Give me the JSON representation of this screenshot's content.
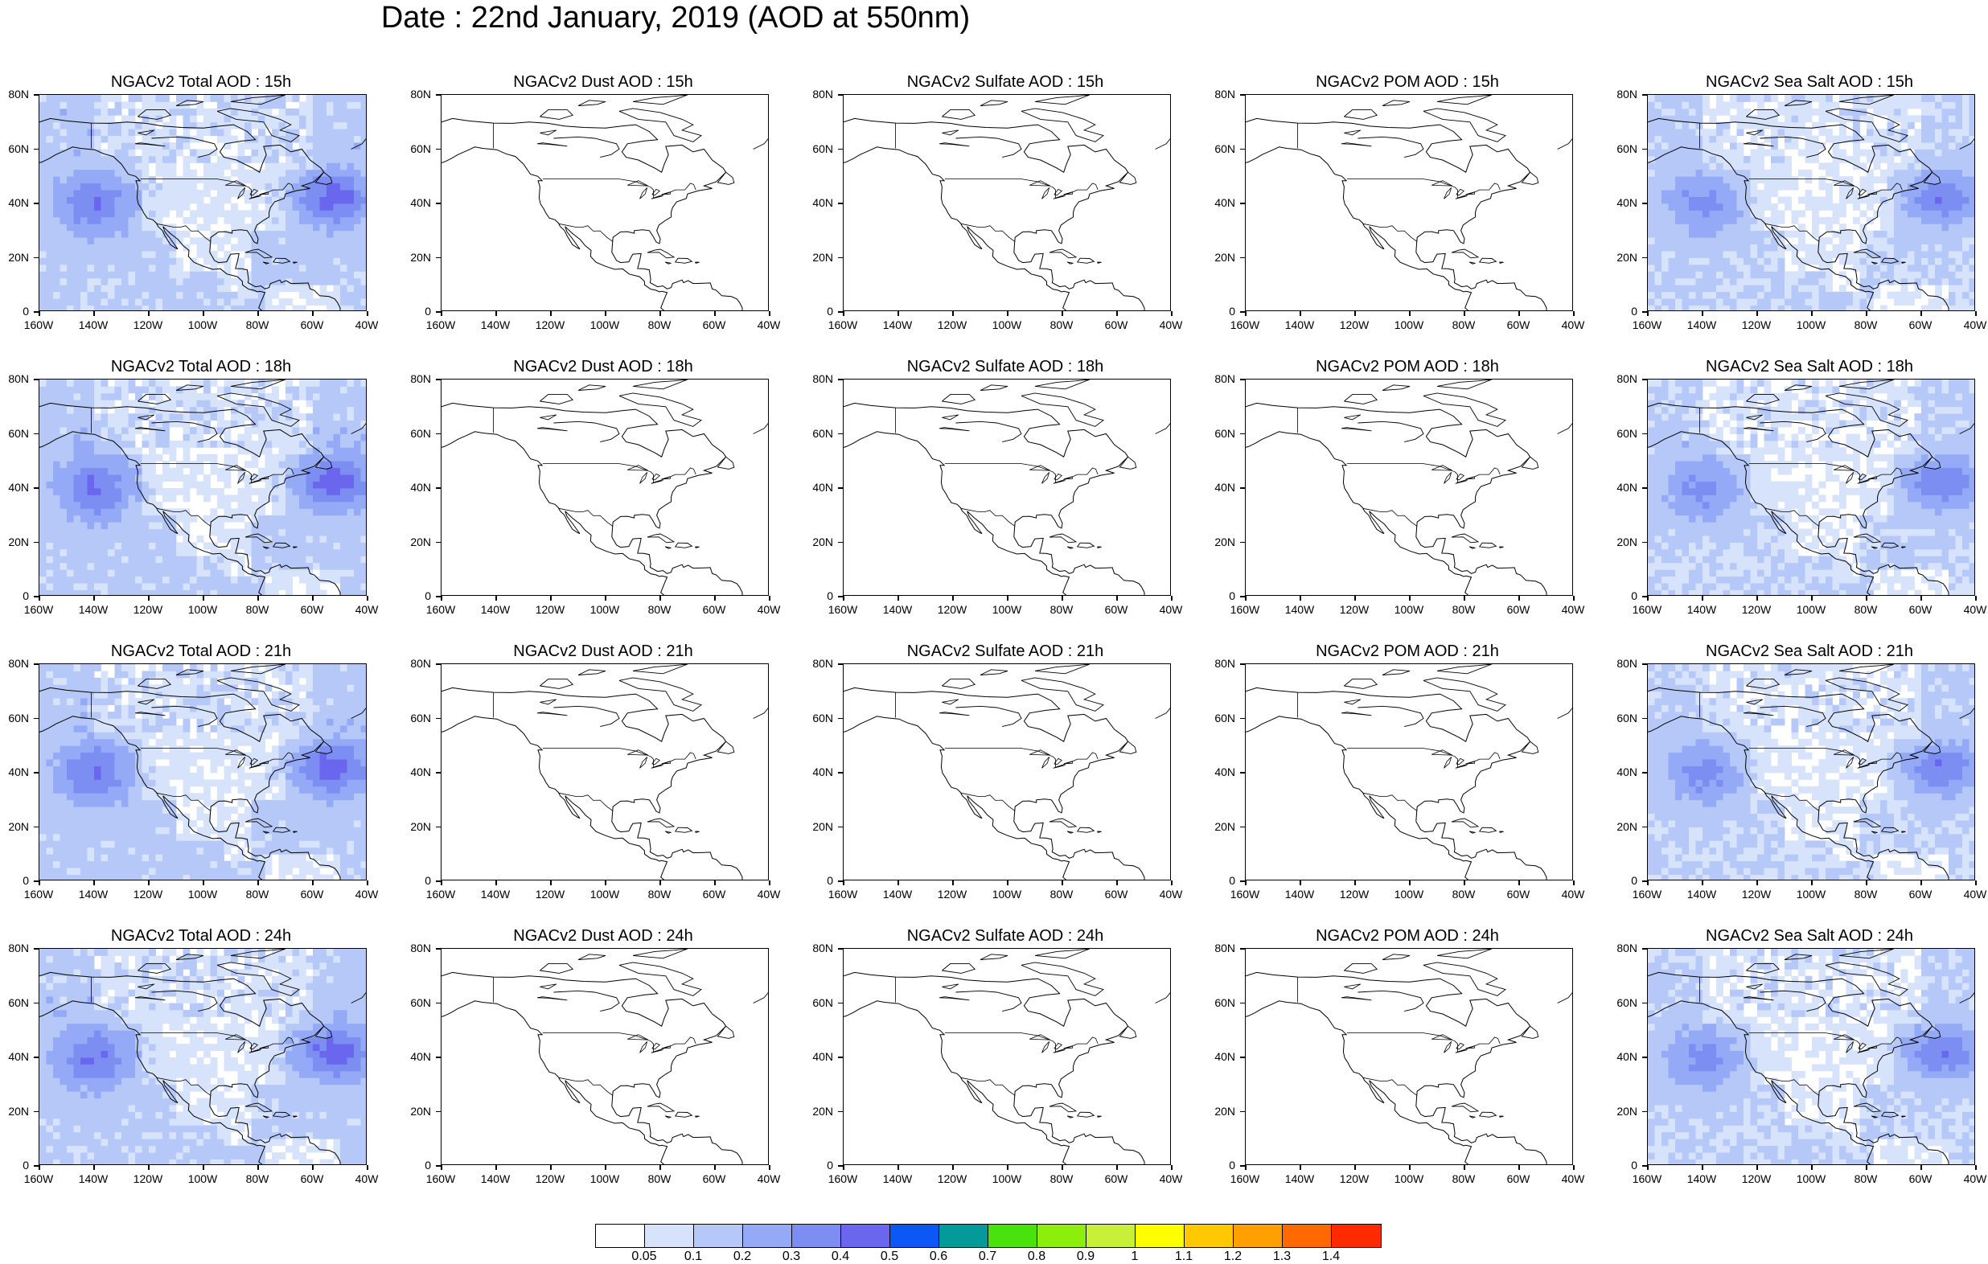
{
  "title": "Date : 22nd January, 2019 (AOD at 550nm)",
  "lat_ticks": [
    "80N",
    "60N",
    "40N",
    "20N",
    "0"
  ],
  "lon_ticks": [
    "160W",
    "140W",
    "120W",
    "100W",
    "80W",
    "60W",
    "40W"
  ],
  "column_products": [
    {
      "name": "Total AOD",
      "intensity": 1.0
    },
    {
      "name": "Dust AOD",
      "intensity": 0.08
    },
    {
      "name": "Sulfate AOD",
      "intensity": 0.05
    },
    {
      "name": "POM AOD",
      "intensity": 0.0
    },
    {
      "name": "Sea Salt AOD",
      "intensity": 0.85
    }
  ],
  "row_hours": [
    "15h",
    "18h",
    "21h",
    "24h"
  ],
  "panel_titles": [
    [
      "NGACv2 Total AOD : 15h",
      "NGACv2 Dust AOD : 15h",
      "NGACv2 Sulfate AOD : 15h",
      "NGACv2 POM AOD : 15h",
      "NGACv2 Sea Salt AOD : 15h"
    ],
    [
      "NGACv2 Total AOD : 18h",
      "NGACv2 Dust AOD : 18h",
      "NGACv2 Sulfate AOD : 18h",
      "NGACv2 POM AOD : 18h",
      "NGACv2 Sea Salt AOD : 18h"
    ],
    [
      "NGACv2 Total AOD : 21h",
      "NGACv2 Dust AOD : 21h",
      "NGACv2 Sulfate AOD : 21h",
      "NGACv2 POM AOD : 21h",
      "NGACv2 Sea Salt AOD : 21h"
    ],
    [
      "NGACv2 Total AOD : 24h",
      "NGACv2 Dust AOD : 24h",
      "NGACv2 Sulfate AOD : 24h",
      "NGACv2 POM AOD : 24h",
      "NGACv2 Sea Salt  AOD : 24h"
    ]
  ],
  "colorbar": {
    "labels": [
      "0.05",
      "0.1",
      "0.2",
      "0.3",
      "0.4",
      "0.5",
      "0.6",
      "0.7",
      "0.8",
      "0.9",
      "1",
      "1.1",
      "1.2",
      "1.3",
      "1.4"
    ],
    "colors": [
      "#ffffff",
      "#d7e3fb",
      "#b5c8f8",
      "#94aaf6",
      "#7d8ef3",
      "#6a67ee",
      "#0c58f5",
      "#049a9a",
      "#48e20e",
      "#8bef0b",
      "#c8f038",
      "#ffff00",
      "#ffc800",
      "#ff9f00",
      "#ff6a00",
      "#ff2a00"
    ]
  },
  "chart_data": {
    "type": "heatmap",
    "title": "Date : 22nd January, 2019 (AOD at 550nm)",
    "variable": "AOD at 550nm",
    "lon_range": [
      "160W",
      "40W"
    ],
    "lat_range": [
      "0",
      "80N"
    ],
    "levels": [
      0.05,
      0.1,
      0.2,
      0.3,
      0.4,
      0.5,
      0.6,
      0.7,
      0.8,
      0.9,
      1,
      1.1,
      1.2,
      1.3,
      1.4
    ],
    "panels_rows": [
      "15h",
      "18h",
      "21h",
      "24h"
    ],
    "panels_cols": [
      "Total AOD",
      "Dust AOD",
      "Sulfate AOD",
      "POM AOD",
      "Sea Salt AOD"
    ]
  }
}
